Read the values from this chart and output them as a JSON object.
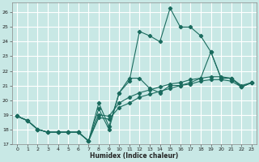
{
  "xlabel": "Humidex (Indice chaleur)",
  "bg_color": "#c8e8e5",
  "grid_color": "#ffffff",
  "line_color": "#1a6b5e",
  "xlim": [
    -0.5,
    23.5
  ],
  "ylim": [
    17,
    26.7
  ],
  "xticks": [
    0,
    1,
    2,
    3,
    4,
    5,
    6,
    7,
    8,
    9,
    10,
    11,
    12,
    13,
    14,
    15,
    16,
    17,
    18,
    19,
    20,
    21,
    22,
    23
  ],
  "yticks": [
    17,
    18,
    19,
    20,
    21,
    22,
    23,
    24,
    25,
    26
  ],
  "series1_x": [
    0,
    1,
    2,
    3,
    4,
    5,
    6,
    7,
    8,
    9,
    10,
    11,
    12,
    13,
    14,
    15,
    16,
    17,
    18,
    19,
    20,
    21,
    22,
    23
  ],
  "series1_y": [
    18.9,
    18.6,
    18.0,
    17.8,
    17.8,
    17.8,
    17.8,
    17.2,
    19.8,
    18.2,
    20.5,
    21.3,
    24.7,
    24.4,
    24.0,
    26.3,
    25.0,
    25.0,
    24.4,
    23.3,
    21.5,
    21.5,
    20.9,
    21.2
  ],
  "series2_x": [
    0,
    1,
    2,
    3,
    4,
    5,
    6,
    7,
    8,
    9,
    10,
    11,
    12,
    13,
    14,
    15,
    16,
    17,
    18,
    19,
    20,
    21,
    22,
    23
  ],
  "series2_y": [
    18.9,
    18.6,
    18.0,
    17.8,
    17.8,
    17.8,
    17.8,
    17.2,
    19.4,
    18.0,
    20.5,
    21.5,
    21.5,
    20.8,
    20.5,
    21.0,
    21.0,
    21.2,
    21.5,
    23.3,
    21.5,
    21.5,
    20.9,
    21.2
  ],
  "series3_x": [
    0,
    1,
    2,
    3,
    4,
    5,
    6,
    7,
    8,
    9,
    10,
    11,
    12,
    13,
    14,
    15,
    16,
    17,
    18,
    19,
    20,
    21,
    22,
    23
  ],
  "series3_y": [
    18.9,
    18.6,
    18.0,
    17.8,
    17.8,
    17.8,
    17.8,
    17.2,
    19.0,
    18.9,
    19.8,
    20.2,
    20.5,
    20.7,
    20.9,
    21.1,
    21.2,
    21.4,
    21.5,
    21.6,
    21.6,
    21.5,
    21.0,
    21.2
  ],
  "series4_x": [
    0,
    1,
    2,
    3,
    4,
    5,
    6,
    7,
    8,
    9,
    10,
    11,
    12,
    13,
    14,
    15,
    16,
    17,
    18,
    19,
    20,
    21,
    22,
    23
  ],
  "series4_y": [
    18.9,
    18.6,
    18.0,
    17.8,
    17.8,
    17.8,
    17.8,
    17.2,
    18.8,
    18.7,
    19.5,
    19.8,
    20.2,
    20.4,
    20.6,
    20.8,
    21.0,
    21.1,
    21.3,
    21.4,
    21.4,
    21.3,
    20.9,
    21.2
  ]
}
